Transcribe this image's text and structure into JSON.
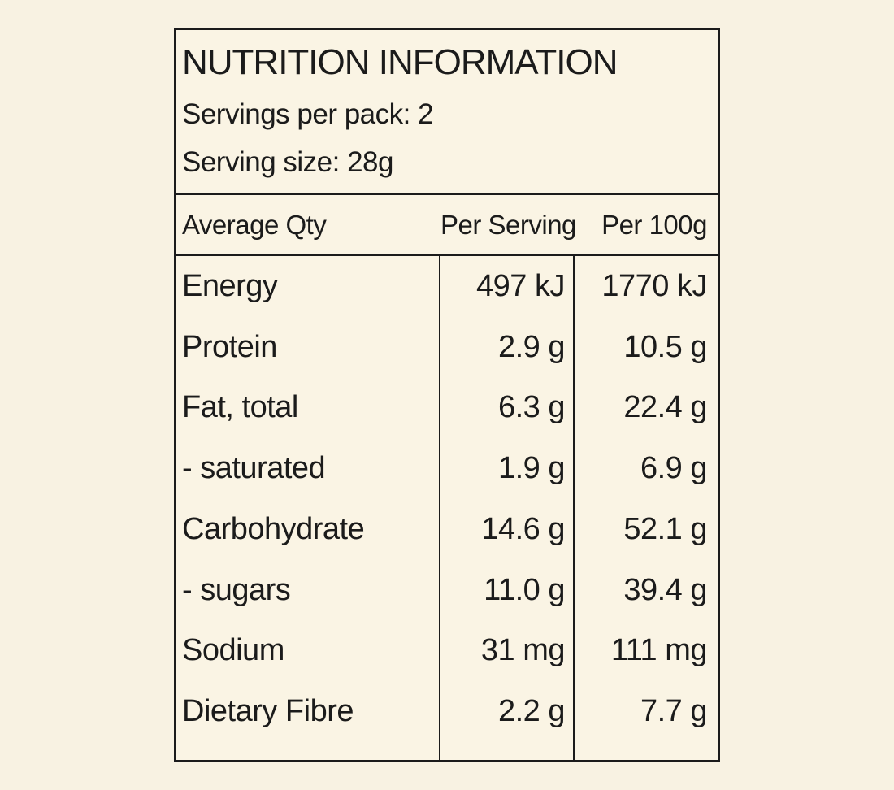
{
  "label": {
    "title": "NUTRITION INFORMATION",
    "servings_per_pack": "Servings per pack: 2",
    "serving_size": "Serving size: 28g",
    "table": {
      "columns": [
        "Average Qty",
        "Per Serving",
        "Per 100g"
      ],
      "rows": [
        {
          "name": "Energy",
          "per_serving": "497 kJ",
          "per_100g": "1770 kJ"
        },
        {
          "name": "Protein",
          "per_serving": "2.9 g",
          "per_100g": "10.5 g"
        },
        {
          "name": "Fat, total",
          "per_serving": "6.3 g",
          "per_100g": "22.4 g"
        },
        {
          "name": "- saturated",
          "per_serving": "1.9 g",
          "per_100g": "6.9 g"
        },
        {
          "name": "Carbohydrate",
          "per_serving": "14.6 g",
          "per_100g": "52.1 g"
        },
        {
          "name": "- sugars",
          "per_serving": "11.0 g",
          "per_100g": "39.4 g"
        },
        {
          "name": "Sodium",
          "per_serving": "31 mg",
          "per_100g": "111 mg"
        },
        {
          "name": "Dietary Fibre",
          "per_serving": "2.2 g",
          "per_100g": "7.7 g"
        }
      ]
    },
    "colors": {
      "page_background": "#f8f2e2",
      "label_background": "#faf4e4",
      "rule": "#1b1b1b",
      "text": "#1b1b1b"
    }
  }
}
